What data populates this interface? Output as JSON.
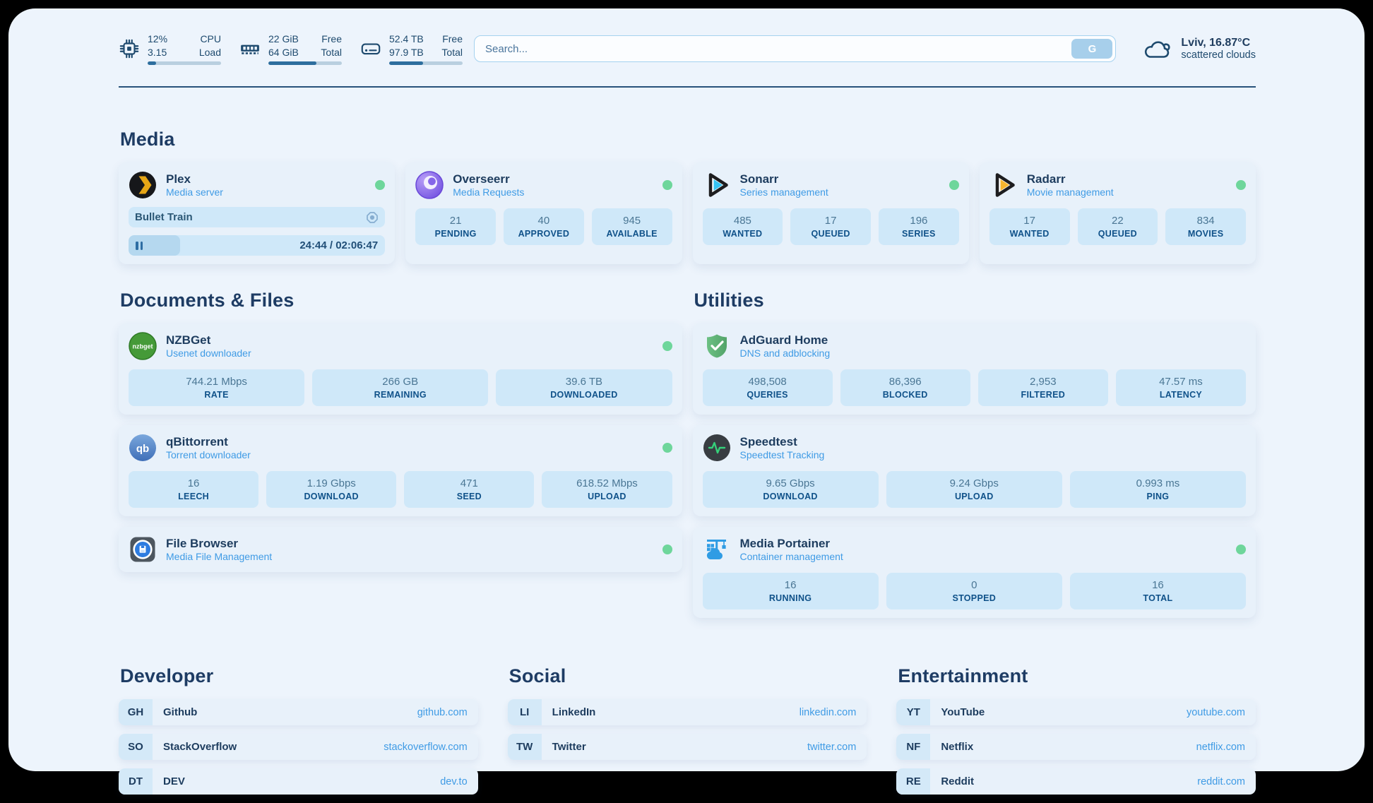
{
  "topbar": {
    "resources": [
      {
        "icon": "cpu-icon",
        "value1": "12%",
        "label1": "CPU",
        "value2": "3.15",
        "label2": "Load",
        "progress": 12
      },
      {
        "icon": "ram-icon",
        "value1": "22 GiB",
        "label1": "Free",
        "value2": "64 GiB",
        "label2": "Total",
        "progress": 65
      },
      {
        "icon": "disk-icon",
        "value1": "52.4 TB",
        "label1": "Free",
        "value2": "97.9 TB",
        "label2": "Total",
        "progress": 46
      }
    ],
    "search": {
      "placeholder": "Search...",
      "button_label": "G"
    },
    "weather": {
      "icon": "cloud-icon",
      "location_temp": "Lviv, 16.87°C",
      "condition": "scattered clouds"
    }
  },
  "sections": {
    "media": {
      "title": "Media",
      "cards": [
        {
          "name": "Plex",
          "subtitle": "Media server",
          "icon": "plex-icon",
          "status": "online",
          "now_playing": {
            "title": "Bullet Train",
            "time_display": "24:44 / 02:06:47",
            "progress_pct": 20
          }
        },
        {
          "name": "Overseerr",
          "subtitle": "Media Requests",
          "icon": "overseerr-icon",
          "status": "online",
          "stats": [
            {
              "value": "21",
              "label": "PENDING"
            },
            {
              "value": "40",
              "label": "APPROVED"
            },
            {
              "value": "945",
              "label": "AVAILABLE"
            }
          ]
        },
        {
          "name": "Sonarr",
          "subtitle": "Series management",
          "icon": "sonarr-icon",
          "status": "online",
          "stats": [
            {
              "value": "485",
              "label": "WANTED"
            },
            {
              "value": "17",
              "label": "QUEUED"
            },
            {
              "value": "196",
              "label": "SERIES"
            }
          ]
        },
        {
          "name": "Radarr",
          "subtitle": "Movie management",
          "icon": "radarr-icon",
          "status": "online",
          "stats": [
            {
              "value": "17",
              "label": "WANTED"
            },
            {
              "value": "22",
              "label": "QUEUED"
            },
            {
              "value": "834",
              "label": "MOVIES"
            }
          ]
        }
      ]
    },
    "documents": {
      "title": "Documents & Files",
      "cards": [
        {
          "name": "NZBGet",
          "subtitle": "Usenet downloader",
          "icon": "nzbget-icon",
          "status": "online",
          "stats": [
            {
              "value": "744.21 Mbps",
              "label": "RATE"
            },
            {
              "value": "266 GB",
              "label": "REMAINING"
            },
            {
              "value": "39.6 TB",
              "label": "DOWNLOADED"
            }
          ]
        },
        {
          "name": "qBittorrent",
          "subtitle": "Torrent downloader",
          "icon": "qbittorrent-icon",
          "status": "online",
          "stats": [
            {
              "value": "16",
              "label": "LEECH"
            },
            {
              "value": "1.19 Gbps",
              "label": "DOWNLOAD"
            },
            {
              "value": "471",
              "label": "SEED"
            },
            {
              "value": "618.52 Mbps",
              "label": "UPLOAD"
            }
          ]
        },
        {
          "name": "File Browser",
          "subtitle": "Media File Management",
          "icon": "filebrowser-icon",
          "status": "online"
        }
      ]
    },
    "utilities": {
      "title": "Utilities",
      "cards": [
        {
          "name": "AdGuard Home",
          "subtitle": "DNS and adblocking",
          "icon": "adguard-icon",
          "stats": [
            {
              "value": "498,508",
              "label": "QUERIES"
            },
            {
              "value": "86,396",
              "label": "BLOCKED"
            },
            {
              "value": "2,953",
              "label": "FILTERED"
            },
            {
              "value": "47.57 ms",
              "label": "LATENCY"
            }
          ]
        },
        {
          "name": "Speedtest",
          "subtitle": "Speedtest Tracking",
          "icon": "speedtest-icon",
          "stats": [
            {
              "value": "9.65 Gbps",
              "label": "DOWNLOAD"
            },
            {
              "value": "9.24 Gbps",
              "label": "UPLOAD"
            },
            {
              "value": "0.993 ms",
              "label": "PING"
            }
          ]
        },
        {
          "name": "Media Portainer",
          "subtitle": "Container management",
          "icon": "portainer-icon",
          "status": "online",
          "stats": [
            {
              "value": "16",
              "label": "RUNNING"
            },
            {
              "value": "0",
              "label": "STOPPED"
            },
            {
              "value": "16",
              "label": "TOTAL"
            }
          ]
        }
      ]
    },
    "bookmarks": {
      "groups": [
        {
          "title": "Developer",
          "items": [
            {
              "abbr": "GH",
              "name": "Github",
              "url": "github.com"
            },
            {
              "abbr": "SO",
              "name": "StackOverflow",
              "url": "stackoverflow.com"
            },
            {
              "abbr": "DT",
              "name": "DEV",
              "url": "dev.to"
            }
          ]
        },
        {
          "title": "Social",
          "items": [
            {
              "abbr": "LI",
              "name": "LinkedIn",
              "url": "linkedin.com"
            },
            {
              "abbr": "TW",
              "name": "Twitter",
              "url": "twitter.com"
            }
          ]
        },
        {
          "title": "Entertainment",
          "items": [
            {
              "abbr": "YT",
              "name": "YouTube",
              "url": "youtube.com"
            },
            {
              "abbr": "NF",
              "name": "Netflix",
              "url": "netflix.com"
            },
            {
              "abbr": "RE",
              "name": "Reddit",
              "url": "reddit.com"
            }
          ]
        }
      ]
    }
  },
  "colors": {
    "page_bg": "#edf4fc",
    "card_bg": "#e8f1fa",
    "stat_bg": "#cfe8f9",
    "accent_blue": "#3f9be5",
    "heading_navy": "#1e3c64",
    "status_online_green": "#6ed69b",
    "progress_fill": "#2e6e9e",
    "divider": "#28527a"
  }
}
